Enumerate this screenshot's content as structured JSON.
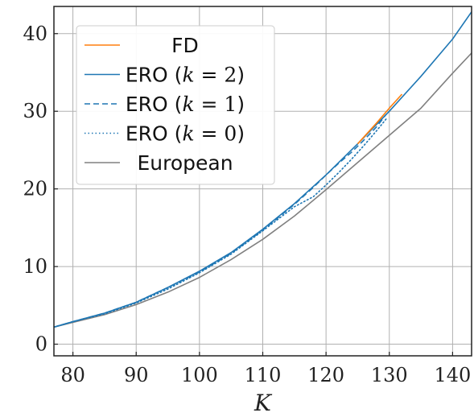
{
  "chart_data": {
    "type": "line",
    "title": "",
    "xlabel": "K",
    "ylabel": "",
    "xlim": [
      77,
      143
    ],
    "ylim": [
      -1.5,
      43.5
    ],
    "xticks": [
      80,
      90,
      100,
      110,
      120,
      130,
      140
    ],
    "yticks": [
      0,
      10,
      20,
      30,
      40
    ],
    "grid": true,
    "legend_position": "top-left",
    "legend": [
      {
        "label": "FD",
        "parts": [
          {
            "t": "FD",
            "m": false
          }
        ],
        "color": "#ff7f0e",
        "dash": "solid"
      },
      {
        "label": "ERO (k = 2)",
        "parts": [
          {
            "t": "ERO (",
            "m": false
          },
          {
            "t": "k",
            "m": true
          },
          {
            "t": " = 2",
            "mp": true
          },
          {
            "t": ")",
            "m": false
          }
        ],
        "color": "#1f77b4",
        "dash": "solid"
      },
      {
        "label": "ERO (k = 1)",
        "parts": [
          {
            "t": "ERO (",
            "m": false
          },
          {
            "t": "k",
            "m": true
          },
          {
            "t": " = 1",
            "mp": true
          },
          {
            "t": ")",
            "m": false
          }
        ],
        "color": "#1f77b4",
        "dash": "dashed"
      },
      {
        "label": "ERO (k = 0)",
        "parts": [
          {
            "t": "ERO (",
            "m": false
          },
          {
            "t": "k",
            "m": true
          },
          {
            "t": " = 0",
            "mp": true
          },
          {
            "t": ")",
            "m": false
          }
        ],
        "color": "#1f77b4",
        "dash": "dotted"
      },
      {
        "label": "European",
        "parts": [
          {
            "t": "European",
            "m": false
          }
        ],
        "color": "#808080",
        "dash": "solid"
      }
    ],
    "series": [
      {
        "name": "European",
        "color": "#808080",
        "dash": "solid",
        "x": [
          77,
          80,
          85,
          90,
          95,
          100,
          105,
          110,
          115,
          120,
          125,
          130,
          135,
          140,
          143
        ],
        "y": [
          2.2,
          2.8,
          3.8,
          5.1,
          6.7,
          8.6,
          10.9,
          13.5,
          16.5,
          19.9,
          23.4,
          26.9,
          30.4,
          34.9,
          37.5
        ]
      },
      {
        "name": "ERO (k = 0)",
        "color": "#1f77b4",
        "dash": "dotted",
        "x": [
          77,
          80,
          85,
          90,
          95,
          100,
          105,
          110,
          115,
          118,
          120,
          122,
          124,
          126,
          128,
          129.5
        ],
        "y": [
          2.2,
          2.9,
          3.9,
          5.3,
          7.1,
          9.2,
          11.6,
          14.6,
          17.7,
          19.0,
          20.5,
          22.1,
          23.8,
          25.6,
          27.5,
          29.0
        ]
      },
      {
        "name": "ERO (k = 1)",
        "color": "#1f77b4",
        "dash": "dashed",
        "x": [
          77,
          80,
          85,
          90,
          95,
          100,
          105,
          110,
          115,
          118,
          120,
          122,
          124,
          126,
          128,
          129.5
        ],
        "y": [
          2.2,
          2.9,
          4.0,
          5.4,
          7.3,
          9.3,
          11.7,
          14.7,
          18.0,
          20.2,
          21.8,
          23.3,
          24.7,
          26.3,
          28.0,
          29.6
        ]
      },
      {
        "name": "ERO (k = 2)",
        "color": "#1f77b4",
        "dash": "solid",
        "x": [
          77,
          80,
          85,
          90,
          95,
          100,
          105,
          110,
          115,
          120,
          125,
          130,
          135,
          140,
          143
        ],
        "y": [
          2.2,
          2.9,
          4.0,
          5.4,
          7.3,
          9.4,
          11.8,
          14.8,
          18.1,
          21.8,
          25.8,
          30.0,
          34.5,
          39.3,
          42.8
        ]
      },
      {
        "name": "FD",
        "color": "#ff7f0e",
        "dash": "solid",
        "x": [
          125,
          128,
          130,
          132
        ],
        "y": [
          25.8,
          28.5,
          30.4,
          32.2
        ]
      }
    ]
  }
}
